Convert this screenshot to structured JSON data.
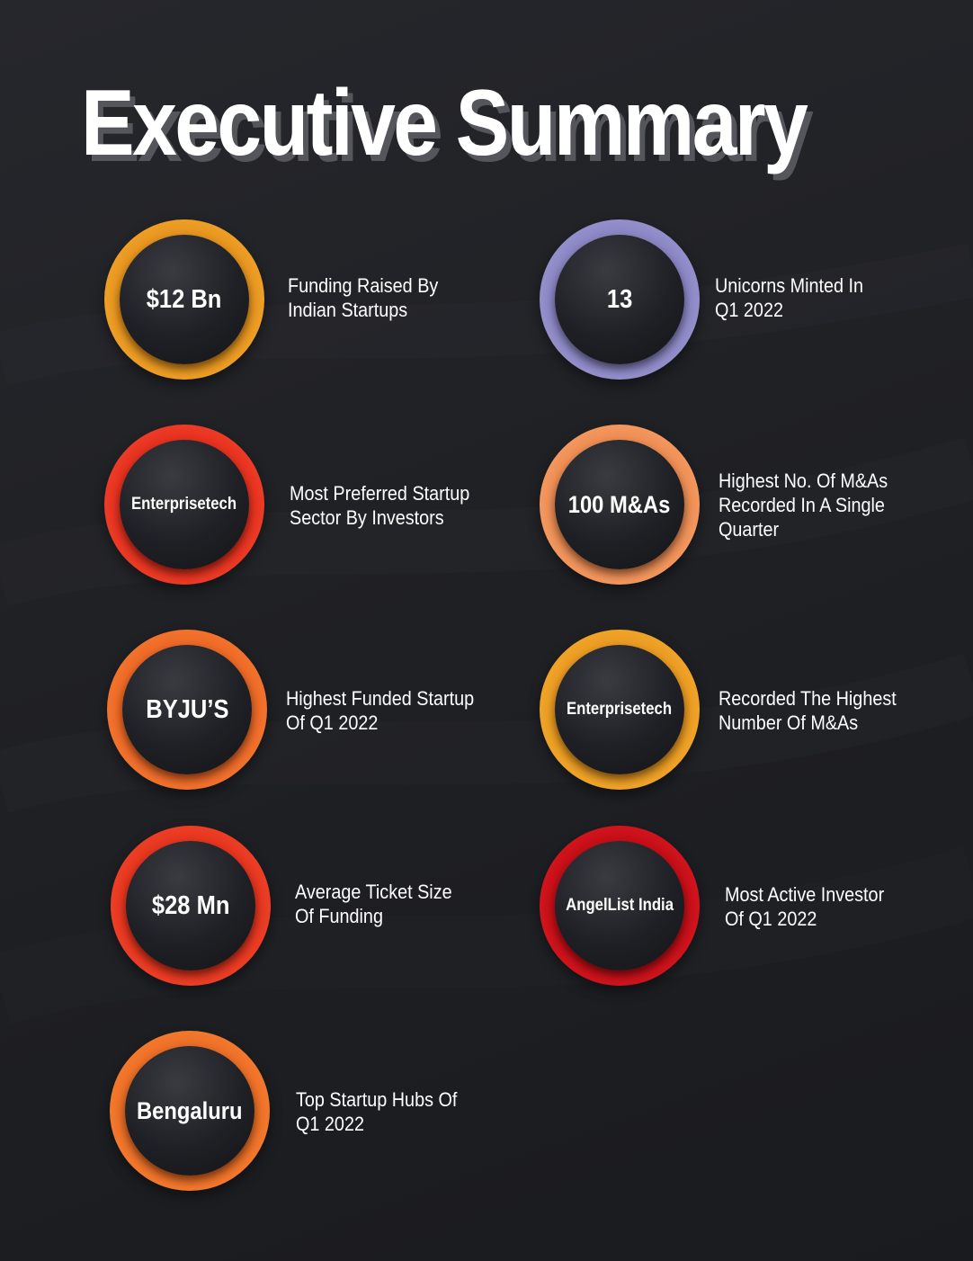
{
  "title": "Executive Summary",
  "colors": {
    "yellow": "#f4ab2e",
    "lavender": "#9b97cf",
    "red": "#f0452b",
    "peach": "#f4a067",
    "orange": "#f37a35",
    "deep_red": "#d8151e",
    "background": "#212226"
  },
  "stats": [
    {
      "value": "$12 Bn",
      "line1": "Funding Raised By",
      "line2": "Indian Startups",
      "line3": ""
    },
    {
      "value": "13",
      "line1": "Unicorns Minted In",
      "line2": "Q1 2022",
      "line3": ""
    },
    {
      "value": "Enterprisetech",
      "line1": "Most Preferred Startup",
      "line2": "Sector By Investors",
      "line3": ""
    },
    {
      "value": "100 M&As",
      "line1": "Highest No. Of M&As",
      "line2": "Recorded In A Single",
      "line3": "Quarter"
    },
    {
      "value": "BYJU’S",
      "line1": "Highest Funded Startup",
      "line2": "Of Q1 2022",
      "line3": ""
    },
    {
      "value": "Enterprisetech",
      "line1": "Recorded The Highest",
      "line2": "Number Of M&As",
      "line3": ""
    },
    {
      "value": "$28 Mn",
      "line1": "Average Ticket Size",
      "line2": "Of Funding",
      "line3": ""
    },
    {
      "value": "AngelList India",
      "line1": "Most Active Investor",
      "line2": "Of Q1 2022",
      "line3": ""
    },
    {
      "value": "Bengaluru",
      "line1": "Top Startup Hubs Of",
      "line2": "Q1 2022",
      "line3": ""
    }
  ]
}
